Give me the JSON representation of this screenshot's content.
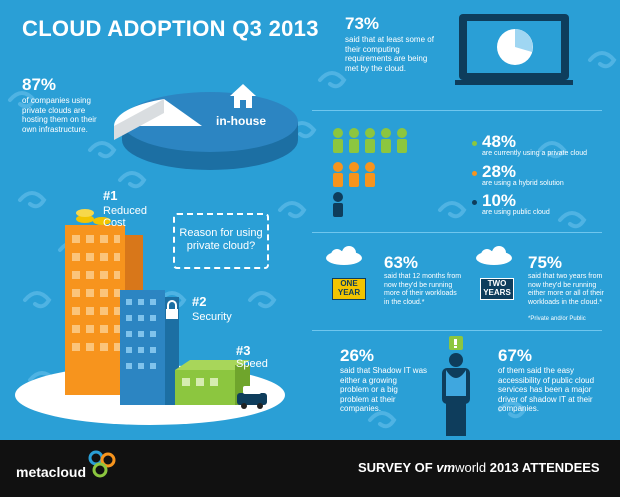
{
  "title": "CLOUD ADOPTION Q3 2013",
  "private_hosting": {
    "stat": "87%",
    "text": "of companies using private clouds are hosting them on their own infrastructure.",
    "pie_label": "in-house"
  },
  "computing": {
    "stat": "73%",
    "text": "said that at least some of their computing requirements are being met by the cloud."
  },
  "usage": [
    {
      "stat": "48%",
      "text": "are currently using a private cloud",
      "color": "#8cc63f"
    },
    {
      "stat": "28%",
      "text": "are using a hybrid solution",
      "color": "#f7941d"
    },
    {
      "stat": "10%",
      "text": "are using public cloud",
      "color": "#0e3d5c"
    }
  ],
  "reasons": {
    "callout": "Reason for using private cloud?",
    "items": [
      {
        "rank": "#1",
        "label": "Reduced Cost"
      },
      {
        "rank": "#2",
        "label": "Security"
      },
      {
        "rank": "#3",
        "label": "Speed"
      }
    ]
  },
  "forecast": [
    {
      "badge": "ONE YEAR",
      "stat": "63%",
      "text": "said that 12 months from now they'd be running more of their workloads in the cloud.*"
    },
    {
      "badge": "TWO YEARS",
      "stat": "75%",
      "text": "said that two years from now they'd be running either more or all of their workloads in the cloud.*"
    }
  ],
  "forecast_note": "*Private and/or Public",
  "shadow_it": [
    {
      "stat": "26%",
      "text": "said that Shadow IT was either a growing problem or a big problem at their companies."
    },
    {
      "stat": "67%",
      "text": "of them said the easy accessibility of public cloud services has been a major driver of shadow IT at their companies."
    }
  ],
  "footer": {
    "brand": "metacloud",
    "survey_prefix": "SURVEY OF",
    "survey_brand_a": "vm",
    "survey_brand_b": "world",
    "survey_suffix": "2013 ATTENDEES"
  },
  "colors": {
    "background": "#2a9fd6",
    "dark_navy": "#0e3d5c",
    "green": "#8cc63f",
    "orange": "#f7941d",
    "yellow": "#f2c400"
  }
}
